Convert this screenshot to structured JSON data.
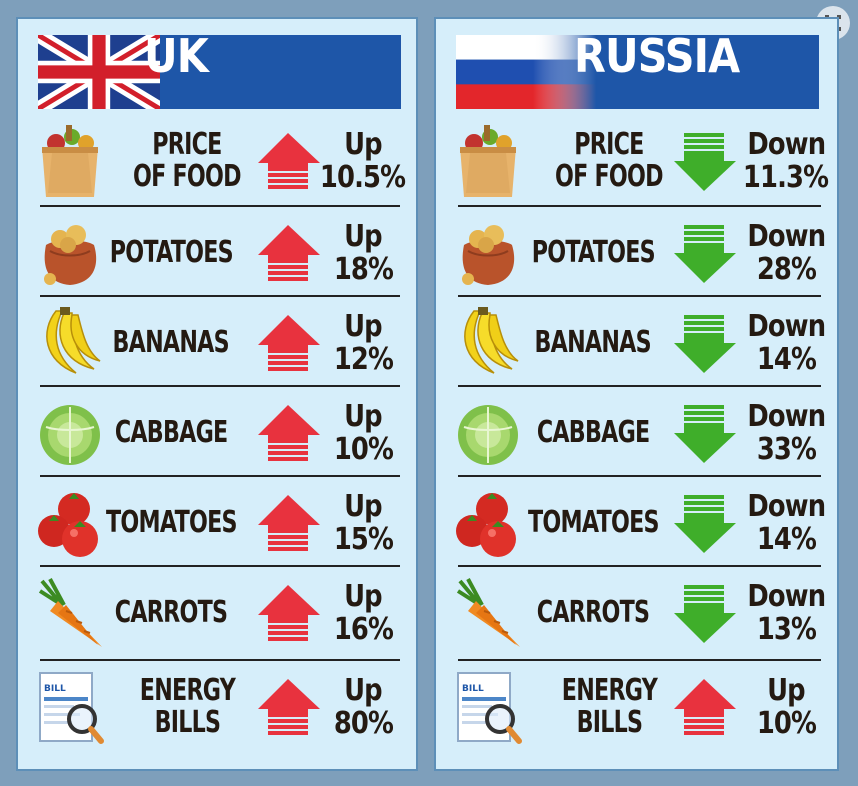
{
  "uk": {
    "title": "UK",
    "rows": [
      {
        "item_line1": "PRICE",
        "item_line2": "OF FOOD",
        "direction": "Up",
        "percent": "10.5%",
        "icon": "grocery-bag-icon",
        "arrow": "up"
      },
      {
        "item_line1": "POTATOES",
        "item_line2": "",
        "direction": "Up",
        "percent": "18%",
        "icon": "potato-sack-icon",
        "arrow": "up"
      },
      {
        "item_line1": "BANANAS",
        "item_line2": "",
        "direction": "Up",
        "percent": "12%",
        "icon": "banana-icon",
        "arrow": "up"
      },
      {
        "item_line1": "CABBAGE",
        "item_line2": "",
        "direction": "Up",
        "percent": "10%",
        "icon": "cabbage-icon",
        "arrow": "up"
      },
      {
        "item_line1": "TOMATOES",
        "item_line2": "",
        "direction": "Up",
        "percent": "15%",
        "icon": "tomato-icon",
        "arrow": "up"
      },
      {
        "item_line1": "CARROTS",
        "item_line2": "",
        "direction": "Up",
        "percent": "16%",
        "icon": "carrot-icon",
        "arrow": "up"
      },
      {
        "item_line1": "ENERGY",
        "item_line2": "BILLS",
        "direction": "Up",
        "percent": "80%",
        "icon": "bill-magnifier-icon",
        "arrow": "up"
      }
    ]
  },
  "russia": {
    "title": "RUSSIA",
    "rows": [
      {
        "item_line1": "PRICE",
        "item_line2": "OF FOOD",
        "direction": "Down",
        "percent": "11.3%",
        "icon": "grocery-bag-icon",
        "arrow": "down"
      },
      {
        "item_line1": "POTATOES",
        "item_line2": "",
        "direction": "Down",
        "percent": "28%",
        "icon": "potato-sack-icon",
        "arrow": "down"
      },
      {
        "item_line1": "BANANAS",
        "item_line2": "",
        "direction": "Down",
        "percent": "14%",
        "icon": "banana-icon",
        "arrow": "down"
      },
      {
        "item_line1": "CABBAGE",
        "item_line2": "",
        "direction": "Down",
        "percent": "33%",
        "icon": "cabbage-icon",
        "arrow": "down"
      },
      {
        "item_line1": "TOMATOES",
        "item_line2": "",
        "direction": "Down",
        "percent": "14%",
        "icon": "tomato-icon",
        "arrow": "down"
      },
      {
        "item_line1": "CARROTS",
        "item_line2": "",
        "direction": "Down",
        "percent": "13%",
        "icon": "carrot-icon",
        "arrow": "down"
      },
      {
        "item_line1": "ENERGY",
        "item_line2": "BILLS",
        "direction": "Up",
        "percent": "10%",
        "icon": "bill-magnifier-icon",
        "arrow": "up"
      }
    ]
  },
  "bill_icon_text": "BILL",
  "colors": {
    "up_arrow": "#e8323e",
    "down_arrow": "#3fae2a",
    "header_blue": "#1e56a8",
    "panel_bg": "#d6eefa",
    "text_dark": "#241a12"
  }
}
